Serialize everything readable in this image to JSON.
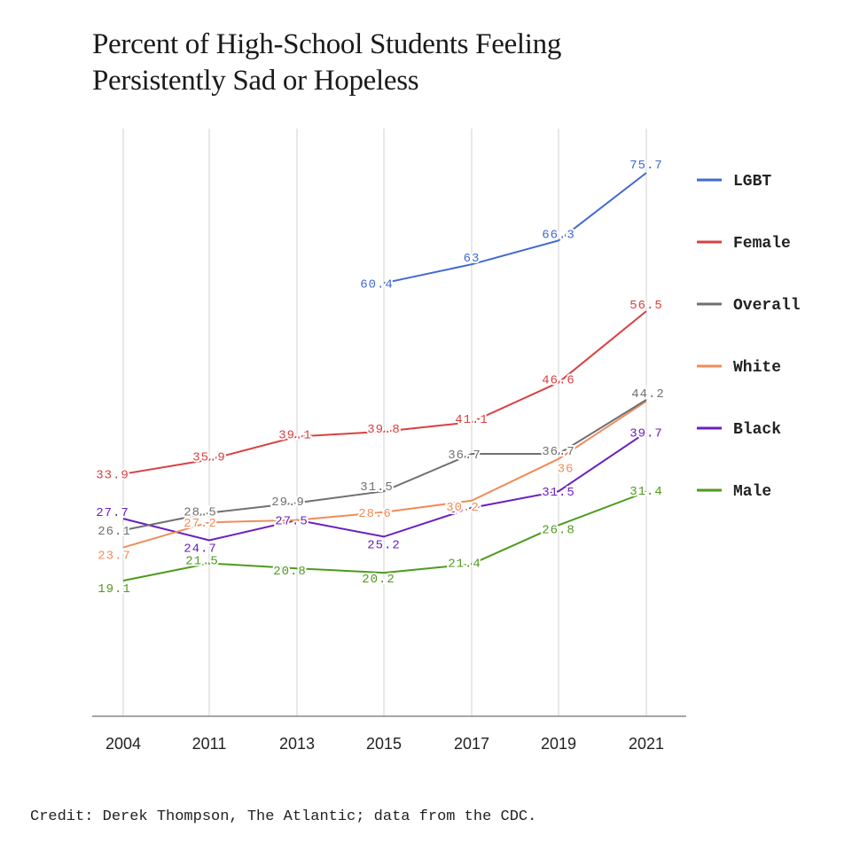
{
  "title": "Percent of High-School Students Feeling Persistently Sad or Hopeless",
  "credit": "Credit: Derek Thompson, The Atlantic; data from the CDC.",
  "chart_data": {
    "type": "line",
    "title": "Percent of High-School Students Feeling Persistently Sad or Hopeless",
    "x": [
      "2004",
      "2011",
      "2013",
      "2015",
      "2017",
      "2019",
      "2021"
    ],
    "ylim": [
      0,
      80
    ],
    "grid": "vertical",
    "legend_position": "right",
    "series": [
      {
        "name": "LGBT",
        "color": "#4169d1",
        "values": [
          null,
          null,
          null,
          60.4,
          63,
          66.3,
          75.7
        ],
        "labels": [
          "",
          "",
          "",
          "60.4",
          "63",
          "66.3",
          "75.7"
        ]
      },
      {
        "name": "Female",
        "color": "#d94040",
        "values": [
          33.9,
          35.9,
          39.1,
          39.8,
          41.1,
          46.6,
          56.5
        ],
        "labels": [
          "33.9",
          "35.9",
          "39.1",
          "39.8",
          "41.1",
          "46.6",
          "56.5"
        ]
      },
      {
        "name": "Overall",
        "color": "#707070",
        "values": [
          26.1,
          28.5,
          29.9,
          31.5,
          36.7,
          36.7,
          44.2
        ],
        "labels": [
          "26.1",
          "28.5",
          "29.9",
          "31.5",
          "36.7",
          "36.7",
          "44.2"
        ]
      },
      {
        "name": "White",
        "color": "#f08c5a",
        "values": [
          23.7,
          27.2,
          27.5,
          28.6,
          30.2,
          36,
          44
        ],
        "labels": [
          "23.7",
          "27.2",
          "",
          "28.6",
          "30.2",
          "36",
          ""
        ]
      },
      {
        "name": "Black",
        "color": "#6a1fc0",
        "values": [
          27.7,
          24.7,
          27.5,
          25.2,
          29.2,
          31.5,
          39.7
        ],
        "labels": [
          "27.7",
          "24.7",
          "27.5",
          "25.2",
          "29.2",
          "31.5",
          "39.7"
        ]
      },
      {
        "name": "Male",
        "color": "#4e9a1e",
        "values": [
          19.1,
          21.5,
          20.8,
          20.2,
          21.4,
          26.8,
          31.4
        ],
        "labels": [
          "19.1",
          "21.5",
          "20.8",
          "20.2",
          "21.4",
          "26.8",
          "31.4"
        ]
      }
    ]
  }
}
